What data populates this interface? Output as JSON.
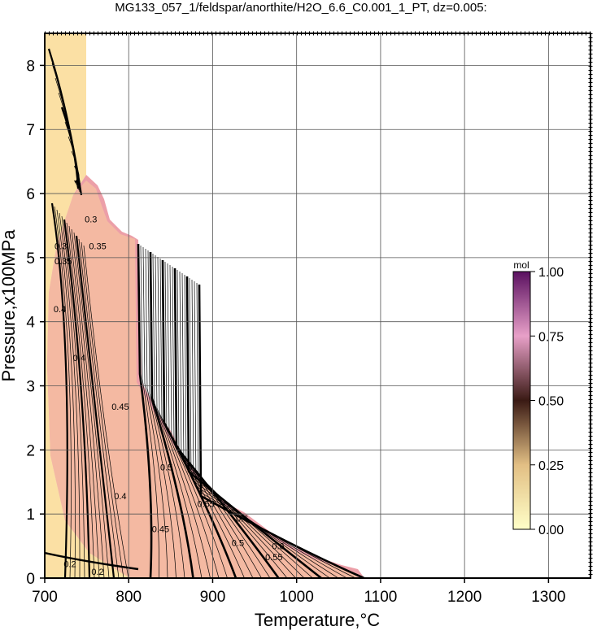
{
  "chart_data": {
    "type": "contour",
    "title": "MG133_057_1/feldspar/anorthite/H2O_6.6_C0.001_1_PT, dz=0.005:",
    "x_label": "Temperature,°C",
    "y_label": "Pressure,x100MPa",
    "xlim": [
      700,
      1350
    ],
    "ylim": [
      0,
      8.5
    ],
    "xticks": [
      700,
      800,
      900,
      1000,
      1100,
      1200,
      1300
    ],
    "yticks": [
      0,
      1,
      2,
      3,
      4,
      5,
      6,
      7,
      8
    ],
    "grid": true,
    "contour_labels": [
      {
        "label": "0.2",
        "x": 730,
        "y": 0.22
      },
      {
        "label": "0.2",
        "x": 763,
        "y": 0.1
      },
      {
        "label": "0.3",
        "x": 719,
        "y": 5.18
      },
      {
        "label": "0.3",
        "x": 755,
        "y": 5.6
      },
      {
        "label": "0.35",
        "x": 763,
        "y": 5.18
      },
      {
        "label": "0.35",
        "x": 722,
        "y": 4.95
      },
      {
        "label": "0.4",
        "x": 718,
        "y": 4.2
      },
      {
        "label": "0.4",
        "x": 741,
        "y": 3.44
      },
      {
        "label": "0.4",
        "x": 790,
        "y": 1.28
      },
      {
        "label": "0.45",
        "x": 790,
        "y": 2.68
      },
      {
        "label": "0.45",
        "x": 838,
        "y": 0.77
      },
      {
        "label": "0.5",
        "x": 845,
        "y": 1.73
      },
      {
        "label": "0.5",
        "x": 930,
        "y": 0.55
      },
      {
        "label": "0.55",
        "x": 892,
        "y": 1.16
      },
      {
        "label": "0.55",
        "x": 973,
        "y": 0.33
      },
      {
        "label": "0.6",
        "x": 935,
        "y": 0.93
      },
      {
        "label": "0.6",
        "x": 978,
        "y": 0.5
      }
    ],
    "colorbar": {
      "label": "mol",
      "lim": [
        0,
        1
      ],
      "ticks": [
        {
          "value": 0,
          "label": "0.00"
        },
        {
          "value": 0.25,
          "label": "0.25"
        },
        {
          "value": 0.5,
          "label": "0.50"
        },
        {
          "value": 0.75,
          "label": "0.75"
        },
        {
          "value": 1,
          "label": "1.00"
        }
      ],
      "colors": [
        "#ffffc8",
        "#e2bf84",
        "#3a1a14",
        "#e8a0c8",
        "#5a1060"
      ]
    }
  }
}
